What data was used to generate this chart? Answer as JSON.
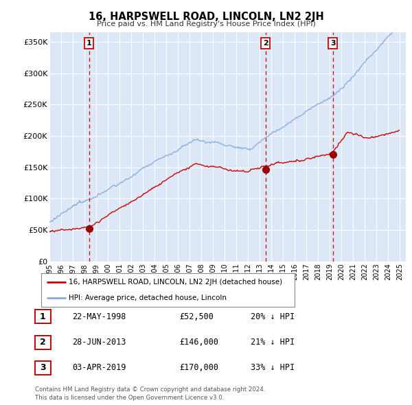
{
  "title": "16, HARPSWELL ROAD, LINCOLN, LN2 2JH",
  "subtitle": "Price paid vs. HM Land Registry's House Price Index (HPI)",
  "ylabel_ticks": [
    "£0",
    "£50K",
    "£100K",
    "£150K",
    "£200K",
    "£250K",
    "£300K",
    "£350K"
  ],
  "ytick_values": [
    0,
    50000,
    100000,
    150000,
    200000,
    250000,
    300000,
    350000
  ],
  "ylim": [
    0,
    365000
  ],
  "xlim_start": 1995.0,
  "xlim_end": 2025.5,
  "transactions": [
    {
      "date_label": "22-MAY-1998",
      "date_x": 1998.38,
      "price": 52500,
      "label": "1",
      "pct": "20% ↓ HPI"
    },
    {
      "date_label": "28-JUN-2013",
      "date_x": 2013.49,
      "price": 146000,
      "label": "2",
      "pct": "21% ↓ HPI"
    },
    {
      "date_label": "03-APR-2019",
      "date_x": 2019.25,
      "price": 170000,
      "label": "3",
      "pct": "33% ↓ HPI"
    }
  ],
  "legend_house": "16, HARPSWELL ROAD, LINCOLN, LN2 2JH (detached house)",
  "legend_hpi": "HPI: Average price, detached house, Lincoln",
  "footer": [
    "Contains HM Land Registry data © Crown copyright and database right 2024.",
    "This data is licensed under the Open Government Licence v3.0."
  ],
  "plot_bg_color": "#dce8f8",
  "red_line_color": "#cc0000",
  "blue_line_color": "#88aadd",
  "dashed_line_color": "#cc0000",
  "marker_color": "#990000"
}
